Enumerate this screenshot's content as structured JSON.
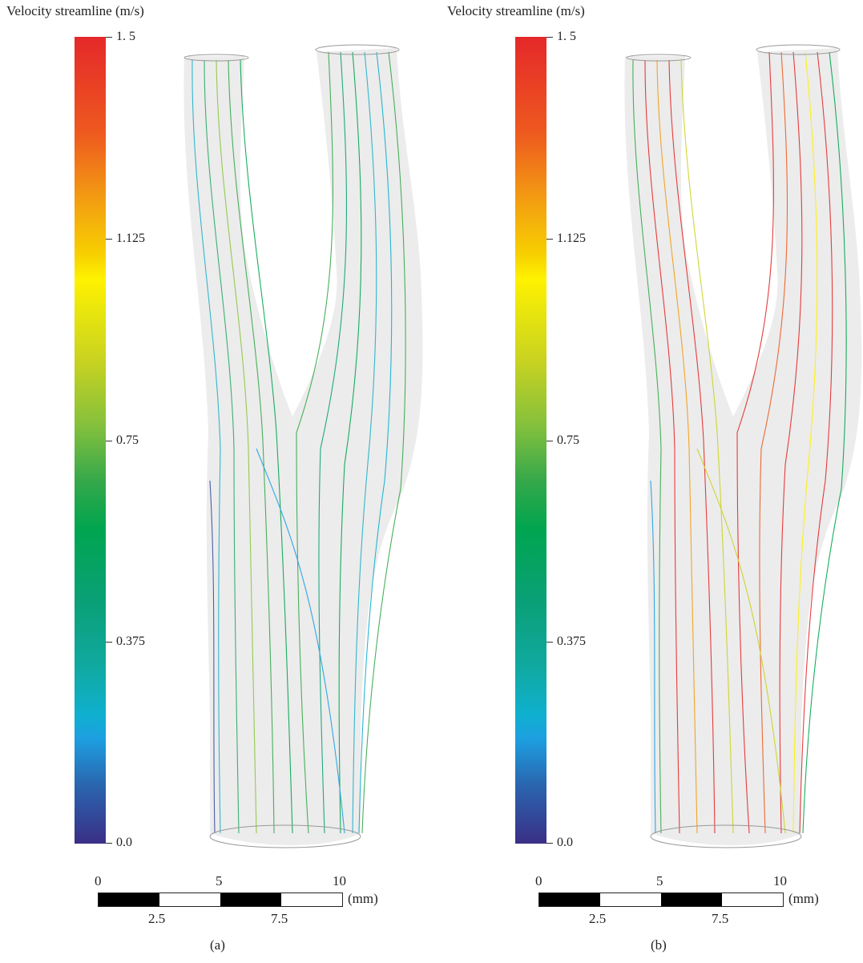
{
  "panels": [
    {
      "id": "a",
      "title": "Velocity streamline (m/s)",
      "ticks": [
        "1. 5",
        "1.125",
        "0.75",
        "0.375",
        "0.0"
      ],
      "scale_top": [
        "0",
        "5",
        "10"
      ],
      "scale_bottom": [
        "2.5",
        "7.5"
      ],
      "unit": "(mm)",
      "caption": "(a)"
    },
    {
      "id": "b",
      "title": "Velocity streamline (m/s)",
      "ticks": [
        "1. 5",
        "1.125",
        "0.75",
        "0.375",
        "0.0"
      ],
      "scale_top": [
        "0",
        "5",
        "10"
      ],
      "scale_bottom": [
        "2.5",
        "7.5"
      ],
      "unit": "(mm)",
      "caption": "(b)"
    }
  ],
  "colors": {
    "high": "#e5282a",
    "mid_high": "#fff200",
    "mid": "#00a54f",
    "mid_low": "#1d9fe0",
    "low": "#3a2f86",
    "vessel_shadow": "#e6e6e6"
  }
}
